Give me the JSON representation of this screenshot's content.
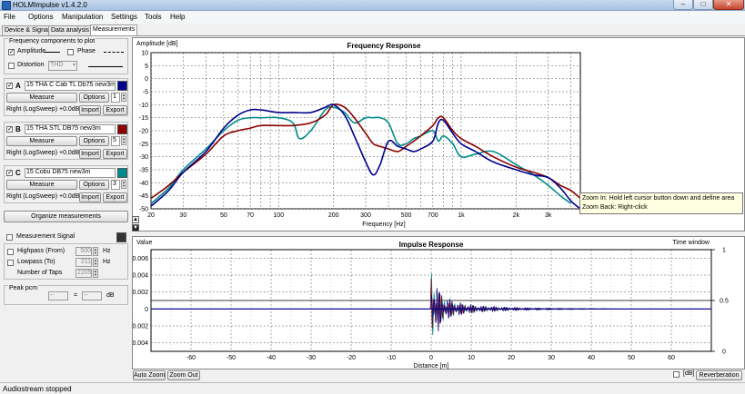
{
  "window": {
    "title": "HOLMImpulse  v1.4.2.0",
    "minimize": "–",
    "maximize": "□",
    "close": "✕"
  },
  "menu": [
    "File",
    "Options",
    "Manipulation",
    "Settings",
    "Tools",
    "Help"
  ],
  "tabs": [
    "Device & Signal",
    "Data analysis",
    "Measurements"
  ],
  "freq_components": {
    "title": "Frequency components to plot",
    "amplitude_label": "Amplitude",
    "amplitude_checked": "✓",
    "phase_label": "Phase",
    "distortion_label": "Distortion",
    "distortion_value": "THD"
  },
  "measurements": [
    {
      "letter": "A",
      "checked": "✓",
      "name": "15 THA C Cab TL Db75 new3m",
      "color": "#00008b",
      "measure": "Measure",
      "options": "Options",
      "count": "1",
      "info": "Right (LogSweep) +0.0dB",
      "import": "Import",
      "export": "Export"
    },
    {
      "letter": "B",
      "checked": "✓",
      "name": "15 THA  STL DB75  new3m",
      "color": "#8b0000",
      "measure": "Measure",
      "options": "Options",
      "count": "5",
      "info": "Right (LogSweep) +0.0dB",
      "import": "Import",
      "export": "Export"
    },
    {
      "letter": "C",
      "checked": "✓",
      "name": "15 Cobu DB75 new3m",
      "color": "#008b8b",
      "measure": "Measure",
      "options": "Options",
      "count": "3",
      "info": "Right (LogSweep) +0.0dB",
      "import": "Import",
      "export": "Export"
    }
  ],
  "organize_button": "Organize measurements",
  "measurement_signal": {
    "label": "Measurement Signal",
    "color": "#333333"
  },
  "filters": {
    "highpass_label": "Highpass (From)",
    "highpass_value": "500",
    "highpass_unit": "Hz",
    "lowpass_label": "Lowpass (To)",
    "lowpass_value": "211",
    "lowpass_unit": "Hz",
    "taps_label": "Number of Taps",
    "taps_value": "2205"
  },
  "peak": {
    "label": "Peak pcm",
    "left": "--",
    "sep": "=",
    "right": "--",
    "unit": "dB"
  },
  "freq_plot": {
    "ylabel": "Amplitude [dB]",
    "title": "Frequency Response",
    "xlabel": "Frequency [Hz]"
  },
  "chart_data": [
    {
      "type": "line",
      "title": "Frequency Response",
      "xlabel": "Frequency [Hz]",
      "ylabel": "Amplitude [dB]",
      "xscale": "log",
      "xlim": [
        20,
        4500
      ],
      "ylim": [
        -50,
        10
      ],
      "grid": true,
      "xticks": [
        20,
        30,
        50,
        70,
        100,
        200,
        300,
        500,
        700,
        1000,
        2000,
        3000
      ],
      "xtick_labels": [
        "20",
        "30",
        "50",
        "70",
        "100",
        "200",
        "300",
        "500",
        "700",
        "1k",
        "2k",
        "3k"
      ],
      "yticks": [
        10,
        5,
        0,
        -5,
        -10,
        -15,
        -20,
        -25,
        -30,
        -35,
        -40,
        -45,
        -50
      ],
      "series": [
        {
          "id": "A",
          "color": "#00008b",
          "x": [
            20,
            25,
            30,
            40,
            50,
            60,
            70,
            80,
            100,
            120,
            150,
            180,
            200,
            230,
            260,
            300,
            330,
            360,
            400,
            450,
            500,
            550,
            600,
            700,
            750,
            800,
            900,
            1000,
            1200,
            1500,
            2000,
            2500,
            3000,
            3500,
            4000,
            4500
          ],
          "y": [
            -49,
            -43,
            -36,
            -28,
            -19,
            -14,
            -12,
            -12,
            -13,
            -13,
            -13,
            -11,
            -10,
            -14,
            -22,
            -32,
            -37,
            -33,
            -24,
            -26,
            -27,
            -28,
            -27,
            -24,
            -17,
            -16,
            -21,
            -25,
            -28,
            -32,
            -35,
            -37,
            -38,
            -42,
            -47,
            -50
          ]
        },
        {
          "id": "B",
          "color": "#8b0000",
          "x": [
            20,
            25,
            30,
            40,
            50,
            60,
            70,
            80,
            100,
            120,
            150,
            180,
            200,
            230,
            260,
            300,
            330,
            360,
            400,
            450,
            500,
            550,
            600,
            700,
            750,
            800,
            900,
            1000,
            1200,
            1500,
            2000,
            2500,
            3000,
            3500,
            4000,
            4500
          ],
          "y": [
            -46,
            -41,
            -36,
            -29,
            -22,
            -20,
            -19,
            -18,
            -18,
            -18,
            -17,
            -14,
            -10,
            -11,
            -15,
            -21,
            -25,
            -26,
            -27,
            -28,
            -26,
            -24,
            -22,
            -18,
            -15,
            -15,
            -20,
            -23,
            -26,
            -30,
            -34,
            -36,
            -38,
            -41,
            -43,
            -46
          ]
        },
        {
          "id": "C",
          "color": "#008b8b",
          "x": [
            20,
            25,
            30,
            40,
            50,
            60,
            70,
            80,
            100,
            120,
            130,
            150,
            180,
            200,
            230,
            260,
            300,
            330,
            360,
            400,
            450,
            500,
            550,
            600,
            700,
            750,
            800,
            900,
            1000,
            1200,
            1500,
            2000,
            2500,
            3000,
            3500,
            4000
          ],
          "y": [
            -48,
            -42,
            -35,
            -27,
            -20,
            -16,
            -15,
            -15,
            -15,
            -17,
            -23,
            -20,
            -12,
            -11,
            -13,
            -17,
            -15,
            -15,
            -15,
            -17,
            -25,
            -25,
            -23,
            -22,
            -20,
            -24,
            -22,
            -25,
            -30,
            -29,
            -28,
            -33,
            -37,
            -41,
            -45,
            -48
          ]
        }
      ]
    },
    {
      "type": "line",
      "title": "Impulse Response",
      "xlabel": "Distance [m]",
      "ylabel": "Value",
      "y2label": "Time window",
      "xlim": [
        -70,
        70
      ],
      "ylim": [
        -0.005,
        0.007
      ],
      "grid": true,
      "xticks": [
        -60,
        -50,
        -40,
        -30,
        -20,
        -10,
        0,
        10,
        20,
        30,
        40,
        50,
        60
      ],
      "yticks": [
        0.006,
        0.004,
        0.002,
        0,
        -0.002,
        -0.004
      ],
      "ytick_labels": [
        "0.006",
        "0.004",
        "0.002",
        "0",
        "-0.002",
        "-0.004"
      ],
      "y2ticks": [
        1,
        0.5,
        0
      ],
      "y2tick_labels": [
        "1",
        "0.5",
        "0"
      ],
      "envelope": {
        "x": [
          0,
          1,
          2,
          3,
          5,
          8,
          12,
          18,
          25,
          35,
          45
        ],
        "amplitude": [
          0.0055,
          0.0035,
          0.0025,
          0.0018,
          0.0011,
          0.0007,
          0.0004,
          0.00025,
          0.00015,
          8e-05,
          3e-05
        ]
      },
      "window": {
        "x": [
          -70,
          70
        ],
        "value": 0.5
      }
    }
  ],
  "impulse_plot": {
    "ylabel": "Value",
    "title": "Impulse Response",
    "xlabel": "Distance [m]",
    "y2label": "Time window"
  },
  "bottom_buttons": {
    "autozoom": "Auto Zoom",
    "zoomout": "Zoom Out",
    "db_label": "[dB]",
    "reverberation": "Reverberation"
  },
  "tooltip": {
    "line1": "Zoom In:   Hold left cursor button down and define area",
    "line2": "Zoom Back: Right-click"
  },
  "status": "Audiostream stopped"
}
